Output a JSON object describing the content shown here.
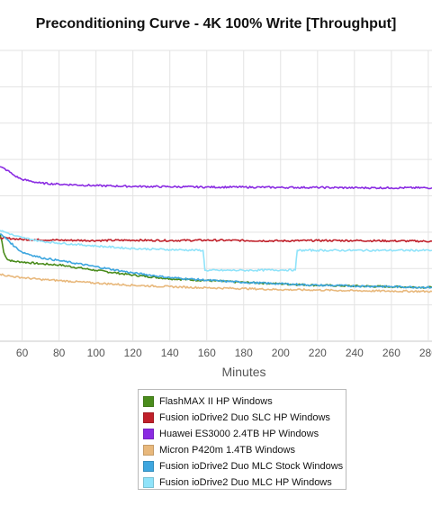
{
  "chart_data": {
    "type": "line",
    "title": "Preconditioning Curve - 4K 100% Write [Throughput]",
    "xlabel": "Minutes",
    "ylabel": "",
    "x_ticks": [
      60,
      80,
      100,
      120,
      140,
      160,
      180,
      200,
      220,
      240,
      260,
      280
    ],
    "xlim": [
      48,
      282
    ],
    "ylim": [
      0,
      8
    ],
    "grid": true,
    "legend_position": "bottom",
    "series": [
      {
        "name": "FlashMAX II HP Windows",
        "color": "#4a8c1c",
        "x": [
          48,
          49,
          50,
          52,
          55,
          60,
          70,
          80,
          100,
          120,
          140,
          160,
          180,
          200,
          220,
          240,
          260,
          282
        ],
        "values": [
          2.95,
          2.75,
          2.45,
          2.25,
          2.2,
          2.18,
          2.13,
          2.1,
          1.95,
          1.82,
          1.72,
          1.67,
          1.62,
          1.58,
          1.54,
          1.52,
          1.5,
          1.48
        ]
      },
      {
        "name": "Fusion ioDrive2 Duo SLC HP Windows",
        "color": "#c0202a",
        "x": [
          48,
          55,
          60,
          80,
          100,
          120,
          140,
          160,
          180,
          200,
          220,
          240,
          260,
          282
        ],
        "values": [
          2.85,
          2.82,
          2.8,
          2.78,
          2.77,
          2.78,
          2.77,
          2.78,
          2.77,
          2.76,
          2.77,
          2.77,
          2.76,
          2.75
        ]
      },
      {
        "name": "Huawei ES3000 2.4TB HP Windows",
        "color": "#8a2be2",
        "x": [
          48,
          52,
          56,
          60,
          65,
          70,
          80,
          100,
          120,
          140,
          160,
          180,
          200,
          220,
          240,
          260,
          282
        ],
        "values": [
          4.8,
          4.7,
          4.55,
          4.45,
          4.4,
          4.35,
          4.32,
          4.28,
          4.26,
          4.25,
          4.24,
          4.24,
          4.23,
          4.23,
          4.22,
          4.22,
          4.22
        ]
      },
      {
        "name": "Micron P420m 1.4TB Windows",
        "color": "#e8b87c",
        "x": [
          48,
          50,
          55,
          60,
          70,
          80,
          100,
          120,
          140,
          160,
          180,
          200,
          220,
          240,
          260,
          282
        ],
        "values": [
          1.85,
          1.82,
          1.78,
          1.75,
          1.7,
          1.67,
          1.6,
          1.54,
          1.5,
          1.47,
          1.45,
          1.42,
          1.41,
          1.39,
          1.38,
          1.37
        ]
      },
      {
        "name": "Fusion ioDrive2 Duo MLC Stock Windows",
        "color": "#3ea6df",
        "x": [
          48,
          52,
          56,
          60,
          70,
          80,
          100,
          120,
          140,
          160,
          180,
          200,
          220,
          240,
          260,
          282
        ],
        "values": [
          2.95,
          2.8,
          2.6,
          2.45,
          2.3,
          2.22,
          2.05,
          1.88,
          1.75,
          1.68,
          1.62,
          1.58,
          1.54,
          1.52,
          1.5,
          1.48
        ]
      },
      {
        "name": "Fusion ioDrive2 Duo MLC HP Windows",
        "color": "#8fe3fa",
        "x": [
          48,
          52,
          56,
          60,
          65,
          70,
          80,
          100,
          120,
          140,
          158,
          159,
          170,
          180,
          200,
          208,
          209,
          220,
          240,
          260,
          282
        ],
        "values": [
          3.05,
          2.98,
          2.9,
          2.85,
          2.8,
          2.75,
          2.7,
          2.62,
          2.55,
          2.52,
          2.5,
          1.95,
          1.95,
          1.95,
          1.96,
          1.96,
          2.5,
          2.5,
          2.5,
          2.5,
          2.5
        ]
      }
    ]
  }
}
